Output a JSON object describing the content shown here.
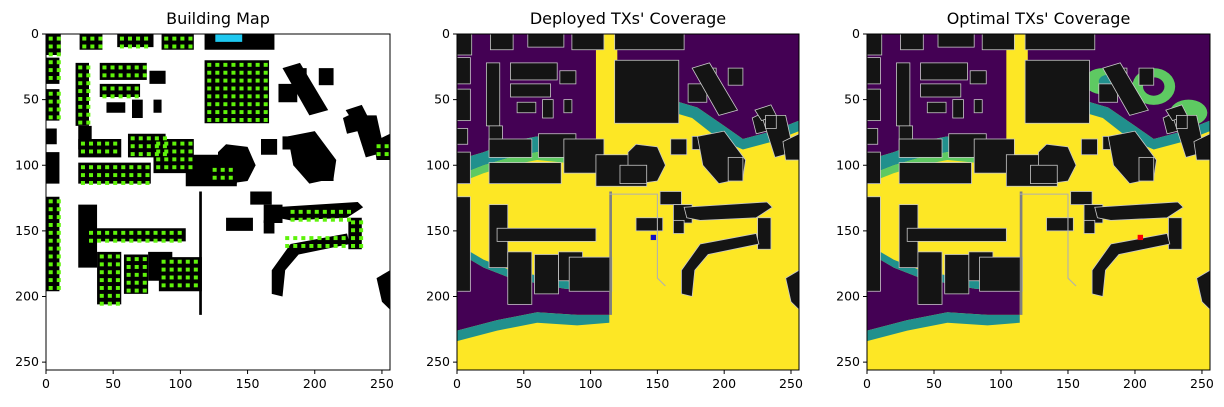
{
  "colors": {
    "purple": "#440154",
    "teal": "#21908d",
    "green": "#5ec962",
    "yellow": "#fde725",
    "building_fill": "#141414",
    "building_dark": "#000000",
    "marker_lime": "#5ef20a",
    "marker_cyan": "#1ec8f0",
    "deployed_tx": "#1010c8",
    "optimal_tx": "#ff0000"
  },
  "chart_data": [
    {
      "type": "heatmap",
      "title": "Building Map",
      "xlim": [
        0,
        256
      ],
      "ylim": [
        256,
        0
      ],
      "x_ticks": [
        0,
        50,
        100,
        150,
        200,
        250
      ],
      "y_ticks": [
        0,
        50,
        100,
        150,
        200,
        250
      ],
      "x_tick_labels": [
        "0",
        "50",
        "100",
        "150",
        "200",
        "250"
      ],
      "y_tick_labels": [
        "0",
        "50",
        "100",
        "150",
        "200",
        "250"
      ],
      "grid": false
    },
    {
      "type": "heatmap",
      "title": "Deployed TXs' Coverage",
      "xlim": [
        0,
        256
      ],
      "ylim": [
        256,
        0
      ],
      "x_ticks": [
        0,
        50,
        100,
        150,
        200,
        250
      ],
      "y_ticks": [
        0,
        50,
        100,
        150,
        200,
        250
      ],
      "x_tick_labels": [
        "0",
        "50",
        "100",
        "150",
        "200",
        "250"
      ],
      "y_tick_labels": [
        "0",
        "50",
        "100",
        "150",
        "200",
        "250"
      ],
      "grid": false,
      "transmitters": [
        [
          147,
          155
        ]
      ]
    },
    {
      "type": "heatmap",
      "title": "Optimal TXs' Coverage",
      "xlim": [
        0,
        256
      ],
      "ylim": [
        256,
        0
      ],
      "x_ticks": [
        0,
        50,
        100,
        150,
        200,
        250
      ],
      "y_ticks": [
        0,
        50,
        100,
        150,
        200,
        250
      ],
      "x_tick_labels": [
        "0",
        "50",
        "100",
        "150",
        "200",
        "250"
      ],
      "y_tick_labels": [
        "0",
        "50",
        "100",
        "150",
        "200",
        "250"
      ],
      "grid": false,
      "transmitters": [
        [
          204,
          155
        ]
      ]
    }
  ]
}
